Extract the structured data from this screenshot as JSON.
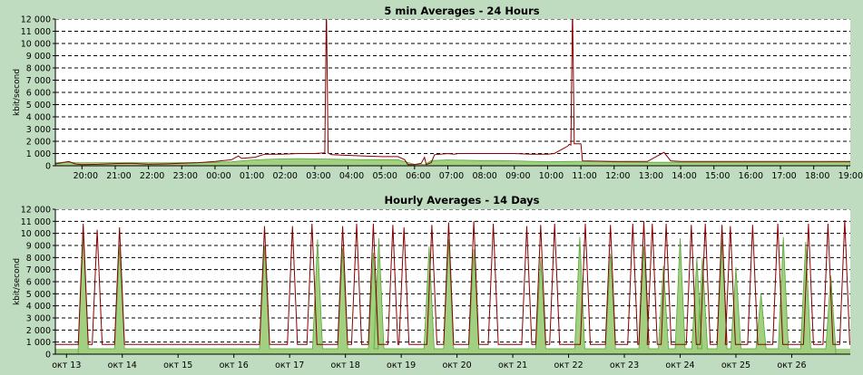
{
  "page": {
    "background": "#c0dcc0"
  },
  "chart_data": [
    {
      "type": "area",
      "title": "5 min Averages - 24 Hours",
      "ylabel": "kbit/second",
      "ylim": [
        0,
        12000
      ],
      "yticks": [
        0,
        1000,
        2000,
        3000,
        4000,
        5000,
        6000,
        7000,
        8000,
        9000,
        10000,
        11000,
        12000
      ],
      "ytick_labels": [
        "0",
        "1 000",
        "2 000",
        "3 000",
        "4 000",
        "5 000",
        "6 000",
        "7 000",
        "8 000",
        "9 000",
        "10 000",
        "11 000",
        "12 000"
      ],
      "xlim": [
        19.2,
        43.1
      ],
      "xticks": [
        20,
        21,
        22,
        23,
        24,
        25,
        26,
        27,
        28,
        29,
        30,
        31,
        32,
        33,
        34,
        35,
        36,
        37,
        38,
        39,
        40,
        41,
        42,
        43
      ],
      "xtick_labels": [
        "20:00",
        "21:00",
        "22:00",
        "23:00",
        "00:00",
        "01:00",
        "02:00",
        "03:00",
        "04:00",
        "05:00",
        "06:00",
        "07:00",
        "08:00",
        "09:00",
        "10:00",
        "11:00",
        "12:00",
        "13:00",
        "14:00",
        "15:00",
        "16:00",
        "17:00",
        "18:00",
        "19:00"
      ],
      "grid": "horizontal-dashed",
      "colors": {
        "in_fill": "#a0d080",
        "in_line": "#5aa83a",
        "out_line": "#880000",
        "grid": "#000000",
        "plot_bg": "#ffffff"
      },
      "series": [
        {
          "kind": "fill",
          "x": [
            19.2,
            19.5,
            19.8,
            20.5,
            21.5,
            22.5,
            23.5,
            24.0,
            24.5,
            25.0,
            25.5,
            26.0,
            26.5,
            27.0,
            27.5,
            28.0,
            28.5,
            29.0,
            29.5,
            30.0,
            30.3,
            30.5,
            31.0,
            31.5,
            32.0,
            32.5,
            33.0,
            33.3,
            33.5,
            34.0,
            34.5,
            35.0,
            35.5,
            36.0,
            37.0,
            38.0,
            39.0,
            40.0,
            41.0,
            42.0,
            43.1
          ],
          "y": [
            250,
            280,
            260,
            250,
            250,
            240,
            260,
            280,
            320,
            450,
            520,
            560,
            580,
            560,
            540,
            520,
            500,
            500,
            500,
            120,
            100,
            420,
            480,
            450,
            420,
            420,
            400,
            380,
            360,
            330,
            350,
            360,
            360,
            300,
            280,
            280,
            280,
            280,
            280,
            290,
            300
          ]
        },
        {
          "kind": "line",
          "x": [
            19.2,
            19.6,
            19.8,
            20.0,
            20.5,
            21.0,
            21.5,
            22.0,
            22.5,
            23.0,
            23.5,
            24.0,
            24.5,
            24.7,
            24.8,
            25.0,
            25.2,
            25.5,
            26.0,
            26.5,
            27.0,
            27.3,
            27.35,
            27.4,
            27.5,
            28.0,
            28.5,
            29.0,
            29.5,
            29.7,
            29.8,
            30.0,
            30.2,
            30.3,
            30.35,
            30.5,
            30.6,
            31.0,
            31.2,
            31.3,
            31.5,
            32.0,
            33.0,
            33.5,
            34.0,
            34.2,
            34.6,
            34.65,
            34.7,
            34.75,
            34.8,
            35.0,
            35.05,
            36.0,
            37.0,
            37.5,
            37.7,
            38.0,
            39.0,
            40.0,
            41.0,
            42.0,
            43.1
          ],
          "y": [
            150,
            350,
            150,
            100,
            120,
            180,
            200,
            120,
            150,
            200,
            250,
            350,
            500,
            800,
            600,
            650,
            700,
            950,
            950,
            1000,
            1000,
            1050,
            13000,
            1050,
            900,
            850,
            800,
            750,
            750,
            500,
            100,
            100,
            200,
            700,
            100,
            250,
            900,
            1000,
            950,
            1000,
            1000,
            1000,
            1000,
            950,
            950,
            1000,
            1600,
            1750,
            1700,
            13000,
            1800,
            1800,
            400,
            350,
            350,
            1100,
            400,
            350,
            350,
            350,
            350,
            350,
            350
          ]
        }
      ]
    },
    {
      "type": "area",
      "title": "Hourly Averages - 14 Days",
      "ylabel": "kbit/second",
      "ylim": [
        0,
        12000
      ],
      "yticks": [
        0,
        1000,
        2000,
        3000,
        4000,
        5000,
        6000,
        7000,
        8000,
        9000,
        10000,
        11000,
        12000
      ],
      "ytick_labels": [
        "0",
        "1 000",
        "2 000",
        "3 000",
        "4 000",
        "5 000",
        "6 000",
        "7 000",
        "8 000",
        "9 000",
        "10 000",
        "11 000",
        "12 000"
      ],
      "xlim": [
        12.8,
        27.05
      ],
      "xticks": [
        13,
        14,
        15,
        16,
        17,
        18,
        19,
        20,
        21,
        22,
        23,
        24,
        25,
        26
      ],
      "xtick_labels": [
        "окт 13",
        "окт 14",
        "окт 15",
        "окт 16",
        "окт 17",
        "окт 18",
        "окт 19",
        "окт 20",
        "окт 21",
        "окт 22",
        "окт 23",
        "окт 24",
        "окт 25",
        "окт 26"
      ],
      "grid": "horizontal-dashed",
      "colors": {
        "in_fill": "#a0d080",
        "in_line": "#5aa83a",
        "out_line": "#880000",
        "grid": "#000000",
        "plot_bg": "#ffffff"
      },
      "series": [
        {
          "kind": "fill",
          "base": 450,
          "x": [
            13.3,
            13.95,
            16.55,
            17.5,
            17.95,
            18.5,
            18.6,
            19.5,
            19.85,
            20.3,
            21.5,
            22.2,
            22.75,
            23.35,
            23.7,
            24.0,
            24.3,
            24.4,
            24.75,
            25.0,
            25.45,
            25.85,
            26.25,
            26.7
          ],
          "peaks": [
            9800,
            8900,
            9000,
            9500,
            8800,
            8400,
            9600,
            8900,
            9500,
            8700,
            8000,
            9700,
            8300,
            8900,
            7300,
            9600,
            8000,
            8000,
            9500,
            7200,
            5000,
            9700,
            9300,
            6500
          ]
        },
        {
          "kind": "line",
          "base": 800,
          "x": [
            13.3,
            13.55,
            13.95,
            16.55,
            17.05,
            17.4,
            17.95,
            18.2,
            18.5,
            18.85,
            19.05,
            19.55,
            19.85,
            20.3,
            20.65,
            21.25,
            21.5,
            21.75,
            22.3,
            22.75,
            23.15,
            23.35,
            23.5,
            23.75,
            24.2,
            24.45,
            24.75,
            24.9,
            25.3,
            25.75,
            26.3,
            26.65,
            26.95
          ],
          "peaks": [
            10800,
            10300,
            10500,
            10600,
            10600,
            10800,
            10600,
            10800,
            10800,
            10700,
            10500,
            10700,
            10900,
            11000,
            10800,
            10600,
            10700,
            10800,
            10800,
            10700,
            10800,
            11000,
            10800,
            10800,
            10700,
            10800,
            10700,
            10600,
            10700,
            10800,
            10800,
            10800,
            11100
          ]
        }
      ]
    }
  ]
}
